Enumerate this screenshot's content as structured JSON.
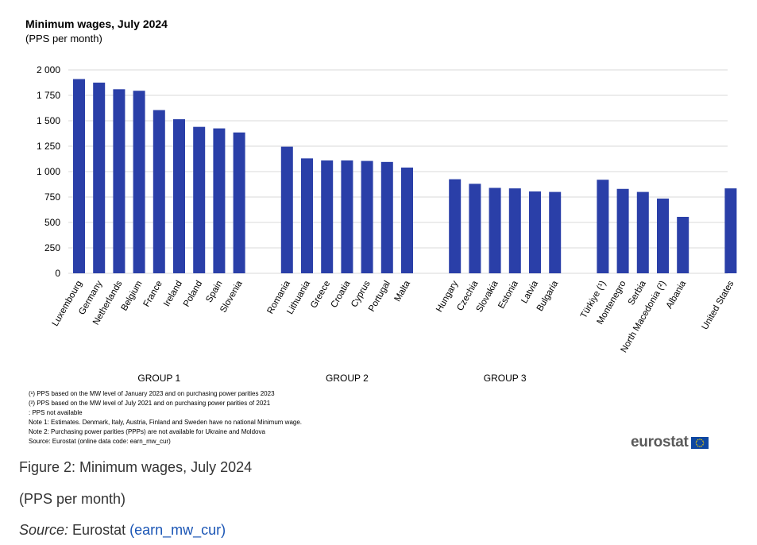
{
  "chart_data": {
    "type": "bar",
    "title": "Minimum wages, July 2024",
    "subtitle": "(PPS per month)",
    "xlabel": "",
    "ylabel": "",
    "ylim": [
      0,
      2000
    ],
    "yticks": [
      0,
      250,
      500,
      750,
      1000,
      1250,
      1500,
      1750,
      2000
    ],
    "ytick_labels": [
      "0",
      "250",
      "500",
      "750",
      "1 000",
      "1 250",
      "1 500",
      "1 750",
      "2 000"
    ],
    "grid": true,
    "legend": "none",
    "bar_color": "#2a3fa8",
    "groups": [
      {
        "name": "GROUP 1",
        "categories": [
          "Luxembourg",
          "Germany",
          "Netherlands",
          "Belgium",
          "France",
          "Ireland",
          "Poland",
          "Spain",
          "Slovenia"
        ],
        "values": [
          1910,
          1875,
          1810,
          1795,
          1605,
          1515,
          1440,
          1425,
          1385
        ]
      },
      {
        "name": "GROUP 2",
        "categories": [
          "Romania",
          "Lithuania",
          "Greece",
          "Croatia",
          "Cyprus",
          "Portugal",
          "Malta"
        ],
        "values": [
          1245,
          1130,
          1110,
          1110,
          1105,
          1095,
          1040
        ]
      },
      {
        "name": "GROUP 3",
        "categories": [
          "Hungary",
          "Czechia",
          "Slovakia",
          "Estonia",
          "Latvia",
          "Bulgaria"
        ],
        "values": [
          925,
          880,
          840,
          835,
          805,
          800
        ]
      },
      {
        "name": "",
        "categories": [
          "Türkiye (¹)",
          "Montenegro",
          "Serbia",
          "North Macedonia (²)",
          "Albania"
        ],
        "values": [
          920,
          830,
          800,
          735,
          555
        ]
      },
      {
        "name": "",
        "categories": [
          "United States"
        ],
        "values": [
          835
        ]
      }
    ]
  },
  "notes": [
    "(¹) PPS based on the MW level of January 2023  and on purchasing power parities 2023",
    "(²) PPS based on the MW level of July 2021  and on purchasing power parities of 2021",
    ":  PPS not available",
    "Note 1: Estimates. Denmark, Italy, Austria, Finland and Sweden have no national Minimum wage.",
    "Note 2: Purchasing power parities (PPPs) are not available for Ukraine and Moldova",
    "Source: Eurostat (online data code: earn_mw_cur)"
  ],
  "logo": {
    "text": "eurostat",
    "flag_color": "#0e47a1",
    "star_color": "#f5d000"
  },
  "caption": {
    "title": "Figure 2: Minimum wages, July 2024",
    "subtitle": "(PPS per month)",
    "source_label": "Source:",
    "source_text": " Eurostat ",
    "source_link": "(earn_mw_cur)"
  }
}
